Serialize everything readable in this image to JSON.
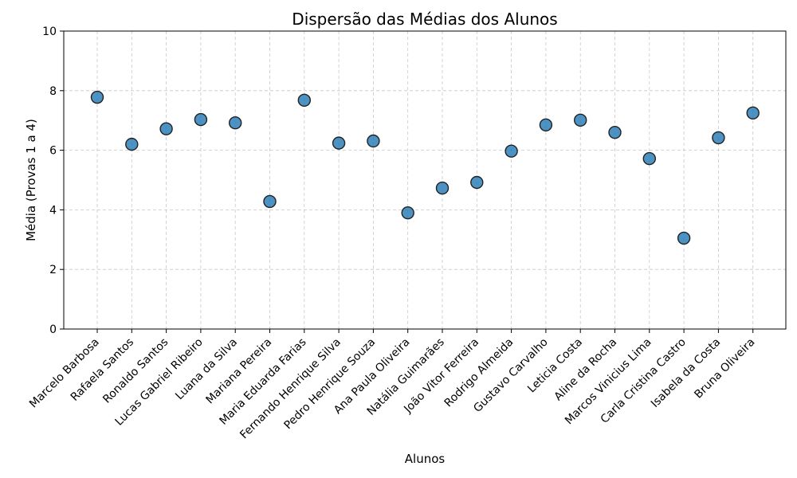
{
  "chart_data": {
    "type": "scatter",
    "title": "Dispersão das Médias dos Alunos",
    "xlabel": "Alunos",
    "ylabel": "Média (Provas 1 a 4)",
    "ylim": [
      0,
      10
    ],
    "yticks": [
      "0",
      "2",
      "4",
      "6",
      "8",
      "10"
    ],
    "grid": true,
    "point_color": "#1f77b4",
    "categories": [
      "Marcelo Barbosa",
      "Rafaela Santos",
      "Ronaldo Santos",
      "Lucas Gabriel Ribeiro",
      "Luana da Silva",
      "Mariana Pereira",
      "Maria Eduarda Farias",
      "Fernando Henrique Silva",
      "Pedro Henrique Souza",
      "Ana Paula Oliveira",
      "Natália Guimarães",
      "João Vitor Ferreira",
      "Rodrigo Almeida",
      "Gustavo Carvalho",
      "Leticia Costa",
      "Aline da Rocha",
      "Marcos Vinicius Lima",
      "Carla Cristina Castro",
      "Isabela da Costa",
      "Bruna Oliveira"
    ],
    "values": [
      7.78,
      6.2,
      6.72,
      7.03,
      6.92,
      4.28,
      7.68,
      6.24,
      6.31,
      3.9,
      4.73,
      4.92,
      5.97,
      6.85,
      7.01,
      6.6,
      5.72,
      3.05,
      6.42,
      7.25
    ]
  }
}
